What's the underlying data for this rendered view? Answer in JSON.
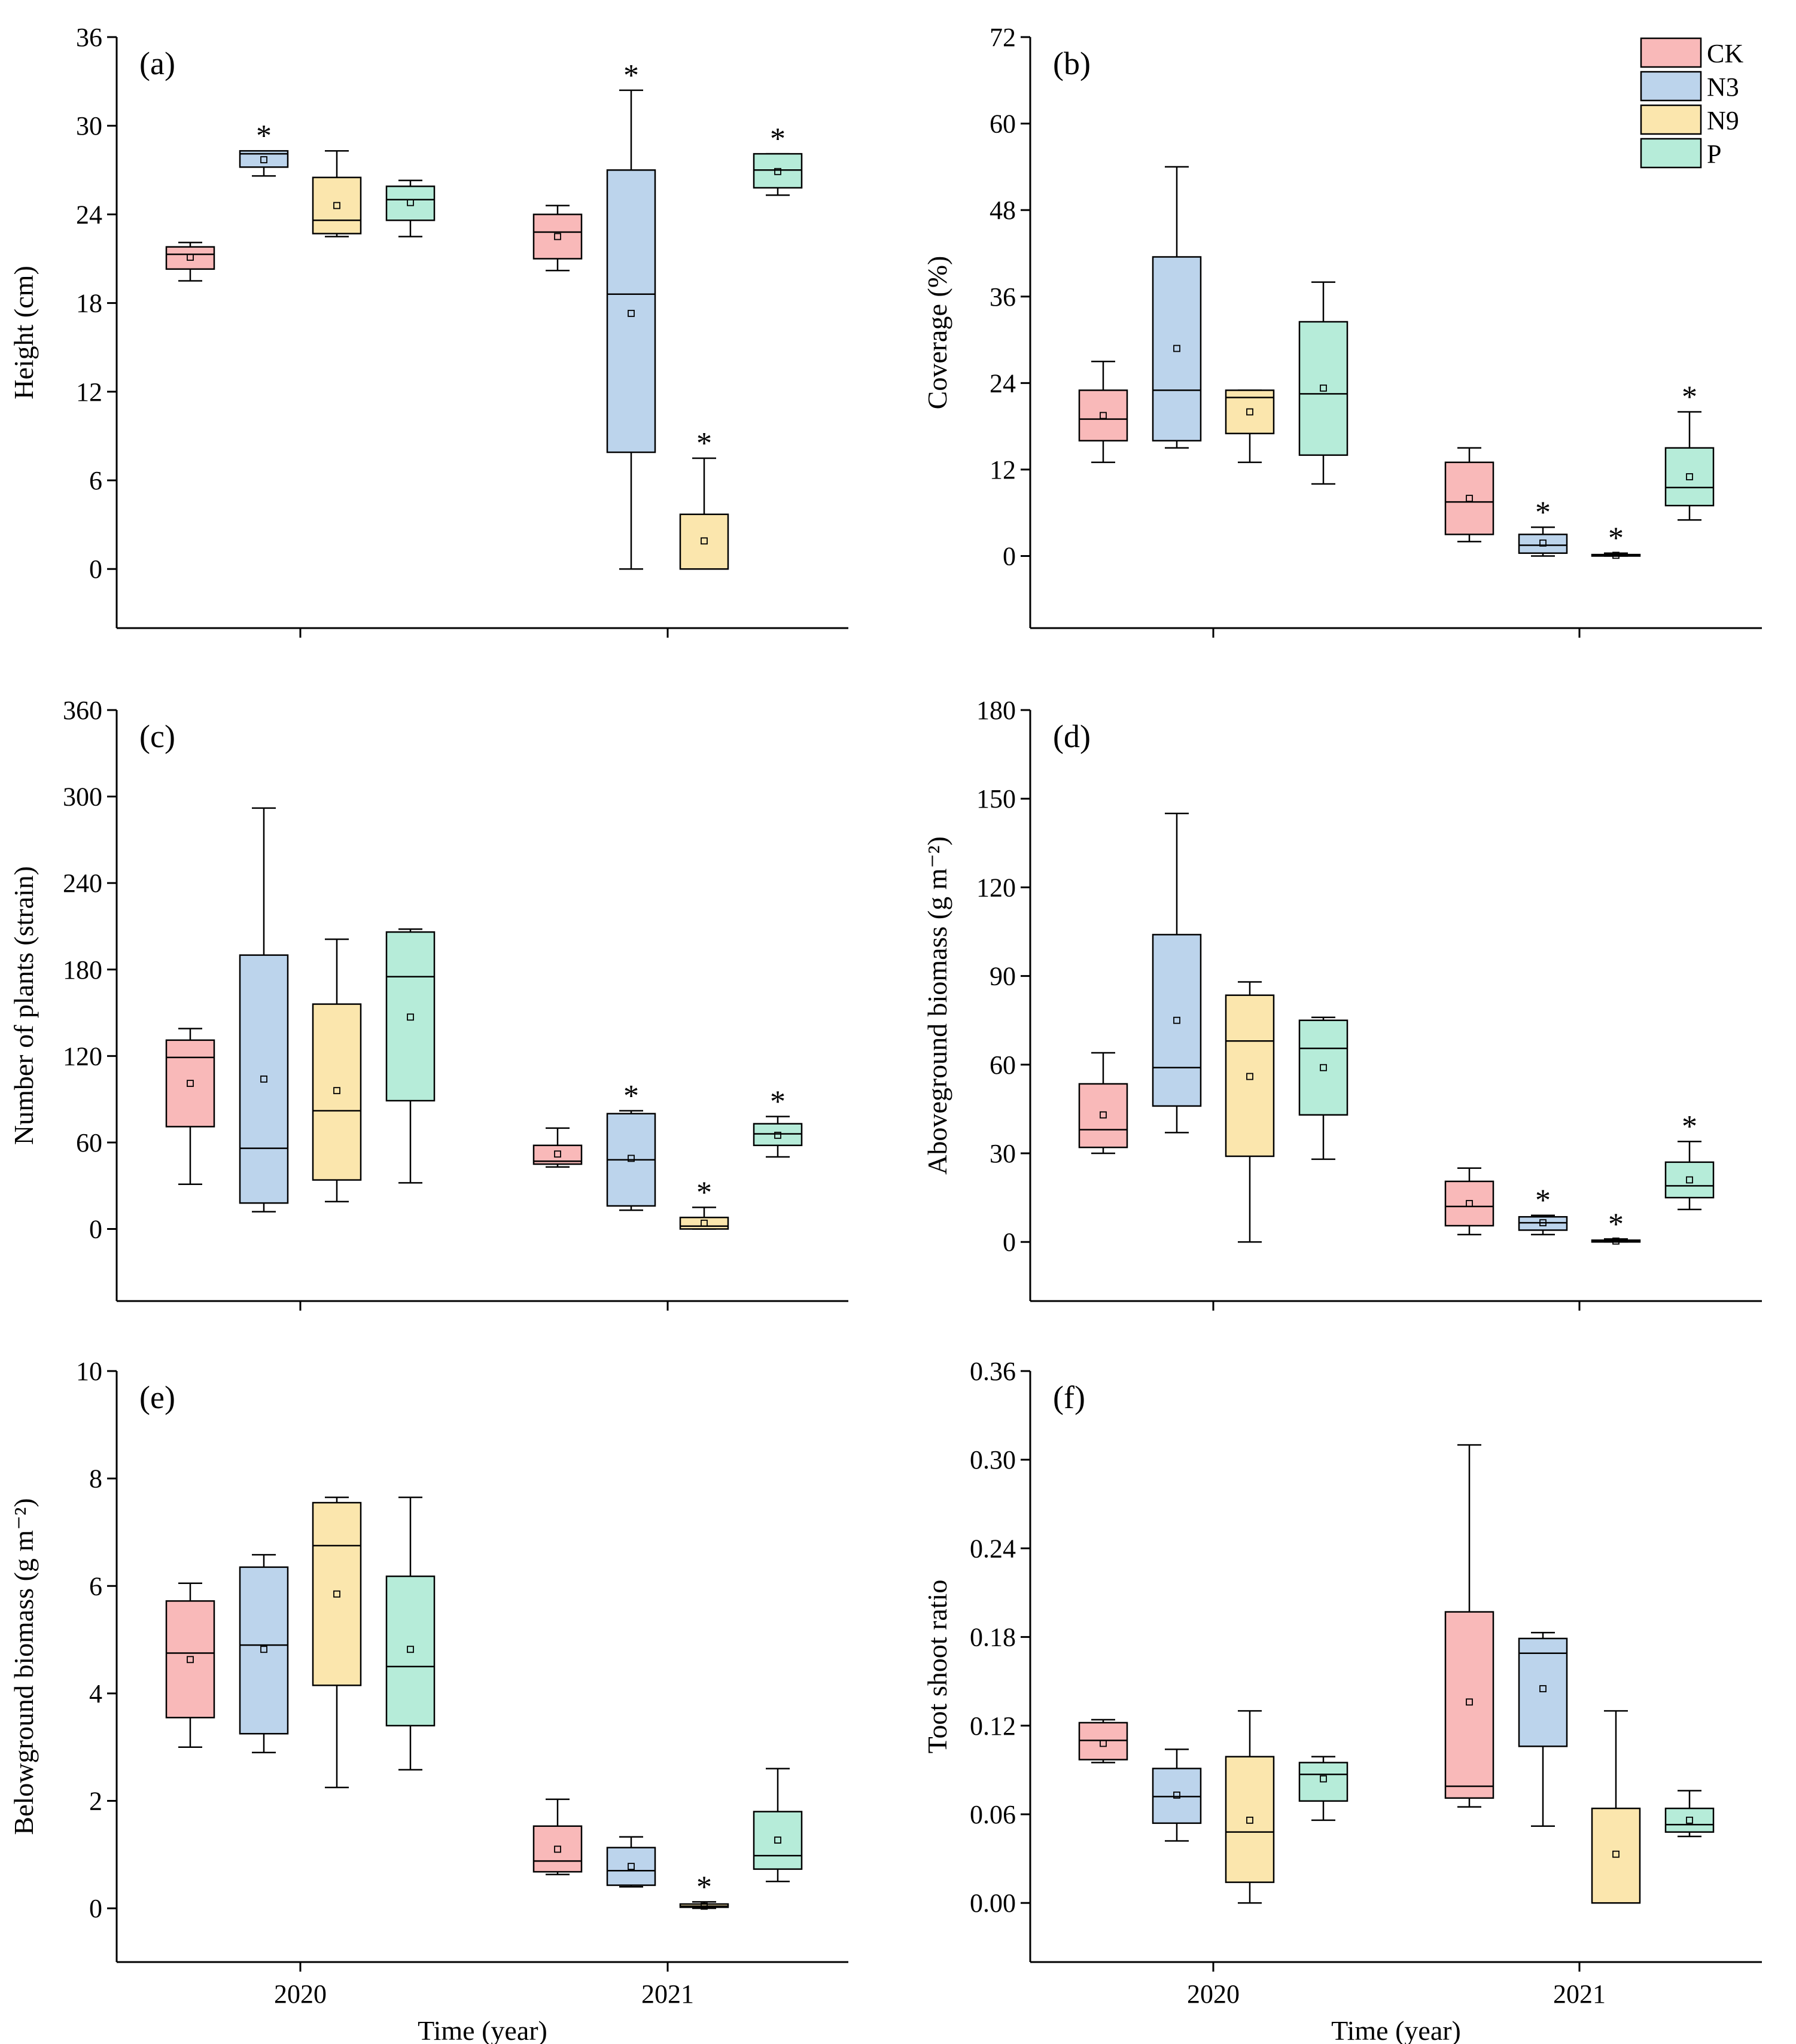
{
  "chart_data": [
    {
      "type": "box",
      "panel_label": "(a)",
      "xlabel": "",
      "ylabel": "Height (cm)",
      "ylim": [
        -4,
        36
      ],
      "yticks": [
        "0",
        "6",
        "12",
        "18",
        "24",
        "30",
        "36"
      ],
      "categories": [
        "2020",
        "2021"
      ],
      "series": [
        {
          "name": "CK",
          "boxes": [
            {
              "whisker_low": 19.5,
              "q1": 20.3,
              "median": 21.3,
              "q3": 21.8,
              "whisker_high": 22.1,
              "mean": 21.1,
              "significant": false
            },
            {
              "whisker_low": 20.2,
              "q1": 21.0,
              "median": 22.8,
              "q3": 24.0,
              "whisker_high": 24.6,
              "mean": 22.5,
              "significant": false
            }
          ]
        },
        {
          "name": "N3",
          "boxes": [
            {
              "whisker_low": 26.6,
              "q1": 27.2,
              "median": 28.1,
              "q3": 28.3,
              "whisker_high": 28.3,
              "mean": 27.7,
              "significant": true
            },
            {
              "whisker_low": 0,
              "q1": 7.9,
              "median": 18.6,
              "q3": 27.0,
              "whisker_high": 32.4,
              "mean": 17.3,
              "significant": true
            }
          ]
        },
        {
          "name": "N9",
          "boxes": [
            {
              "whisker_low": 22.5,
              "q1": 22.7,
              "median": 23.6,
              "q3": 26.5,
              "whisker_high": 28.3,
              "mean": 24.6,
              "significant": false
            },
            {
              "whisker_low": 0,
              "q1": 0,
              "median": 0,
              "q3": 3.7,
              "whisker_high": 7.5,
              "mean": 1.9,
              "significant": true
            }
          ]
        },
        {
          "name": "P",
          "boxes": [
            {
              "whisker_low": 22.5,
              "q1": 23.6,
              "median": 25.0,
              "q3": 25.9,
              "whisker_high": 26.3,
              "mean": 24.8,
              "significant": false
            },
            {
              "whisker_low": 25.3,
              "q1": 25.8,
              "median": 27.0,
              "q3": 28.1,
              "whisker_high": 28.1,
              "mean": 26.9,
              "significant": true
            }
          ]
        }
      ]
    },
    {
      "type": "box",
      "panel_label": "(b)",
      "xlabel": "",
      "ylabel": "Coverage (%)",
      "ylim": [
        -10,
        72
      ],
      "yticks": [
        "0",
        "12",
        "24",
        "36",
        "48",
        "60",
        "72"
      ],
      "categories": [
        "2020",
        "2021"
      ],
      "series": [
        {
          "name": "CK",
          "boxes": [
            {
              "whisker_low": 13,
              "q1": 16,
              "median": 19,
              "q3": 23,
              "whisker_high": 27,
              "mean": 19.5,
              "significant": false
            },
            {
              "whisker_low": 2,
              "q1": 3,
              "median": 7.5,
              "q3": 13,
              "whisker_high": 15,
              "mean": 8,
              "significant": false
            }
          ]
        },
        {
          "name": "N3",
          "boxes": [
            {
              "whisker_low": 15,
              "q1": 16,
              "median": 23,
              "q3": 41.5,
              "whisker_high": 54,
              "mean": 28.8,
              "significant": false
            },
            {
              "whisker_low": 0,
              "q1": 0.4,
              "median": 1.5,
              "q3": 3,
              "whisker_high": 4,
              "mean": 1.8,
              "significant": true
            }
          ]
        },
        {
          "name": "N9",
          "boxes": [
            {
              "whisker_low": 13,
              "q1": 17,
              "median": 22,
              "q3": 23,
              "whisker_high": 23,
              "mean": 20,
              "significant": false
            },
            {
              "whisker_low": 0,
              "q1": 0,
              "median": 0.1,
              "q3": 0.2,
              "whisker_high": 0.4,
              "mean": 0.1,
              "significant": true
            }
          ]
        },
        {
          "name": "P",
          "boxes": [
            {
              "whisker_low": 10,
              "q1": 14,
              "median": 22.5,
              "q3": 32.5,
              "whisker_high": 38,
              "mean": 23.3,
              "significant": false
            },
            {
              "whisker_low": 5,
              "q1": 7,
              "median": 9.5,
              "q3": 15,
              "whisker_high": 20,
              "mean": 11,
              "significant": true
            }
          ]
        }
      ],
      "legend": [
        "CK",
        "N3",
        "N9",
        "P"
      ]
    },
    {
      "type": "box",
      "panel_label": "(c)",
      "xlabel": "",
      "ylabel": "Number of plants (strain)",
      "ylim": [
        -50,
        360
      ],
      "yticks": [
        "0",
        "60",
        "120",
        "180",
        "240",
        "300",
        "360"
      ],
      "categories": [
        "2020",
        "2021"
      ],
      "series": [
        {
          "name": "CK",
          "boxes": [
            {
              "whisker_low": 31,
              "q1": 71,
              "median": 119,
              "q3": 131,
              "whisker_high": 139,
              "mean": 101,
              "significant": false
            },
            {
              "whisker_low": 43,
              "q1": 45,
              "median": 47,
              "q3": 58,
              "whisker_high": 70,
              "mean": 52,
              "significant": false
            }
          ]
        },
        {
          "name": "N3",
          "boxes": [
            {
              "whisker_low": 12,
              "q1": 18,
              "median": 56,
              "q3": 190,
              "whisker_high": 292,
              "mean": 104,
              "significant": false
            },
            {
              "whisker_low": 13,
              "q1": 16,
              "median": 48,
              "q3": 80,
              "whisker_high": 82,
              "mean": 49,
              "significant": true
            }
          ]
        },
        {
          "name": "N9",
          "boxes": [
            {
              "whisker_low": 19,
              "q1": 34,
              "median": 82,
              "q3": 156,
              "whisker_high": 201,
              "mean": 96,
              "significant": false
            },
            {
              "whisker_low": 0,
              "q1": 0,
              "median": 2,
              "q3": 8,
              "whisker_high": 15,
              "mean": 4,
              "significant": true
            }
          ]
        },
        {
          "name": "P",
          "boxes": [
            {
              "whisker_low": 32,
              "q1": 89,
              "median": 175,
              "q3": 206,
              "whisker_high": 208,
              "mean": 147,
              "significant": false
            },
            {
              "whisker_low": 50,
              "q1": 58,
              "median": 66,
              "q3": 73,
              "whisker_high": 78,
              "mean": 65,
              "significant": true
            }
          ]
        }
      ]
    },
    {
      "type": "box",
      "panel_label": "(d)",
      "xlabel": "",
      "ylabel": "Aboveground biomass (g m⁻²)",
      "ylim": [
        -20,
        180
      ],
      "yticks": [
        "0",
        "30",
        "60",
        "90",
        "120",
        "150",
        "180"
      ],
      "categories": [
        "2020",
        "2021"
      ],
      "series": [
        {
          "name": "CK",
          "boxes": [
            {
              "whisker_low": 30,
              "q1": 32,
              "median": 38,
              "q3": 53.5,
              "whisker_high": 64,
              "mean": 43,
              "significant": false
            },
            {
              "whisker_low": 2.5,
              "q1": 5.5,
              "median": 12,
              "q3": 20.5,
              "whisker_high": 25,
              "mean": 13,
              "significant": false
            }
          ]
        },
        {
          "name": "N3",
          "boxes": [
            {
              "whisker_low": 37,
              "q1": 46,
              "median": 59,
              "q3": 104,
              "whisker_high": 145,
              "mean": 75,
              "significant": false
            },
            {
              "whisker_low": 2.5,
              "q1": 4,
              "median": 6.5,
              "q3": 8.5,
              "whisker_high": 9,
              "mean": 6.5,
              "significant": true
            }
          ]
        },
        {
          "name": "N9",
          "boxes": [
            {
              "whisker_low": 0,
              "q1": 29,
              "median": 68,
              "q3": 83.5,
              "whisker_high": 88,
              "mean": 56,
              "significant": false
            },
            {
              "whisker_low": 0,
              "q1": 0,
              "median": 0.3,
              "q3": 0.6,
              "whisker_high": 1,
              "mean": 0.3,
              "significant": true
            }
          ]
        },
        {
          "name": "P",
          "boxes": [
            {
              "whisker_low": 28,
              "q1": 43,
              "median": 65.5,
              "q3": 75,
              "whisker_high": 76,
              "mean": 59,
              "significant": false
            },
            {
              "whisker_low": 11,
              "q1": 15,
              "median": 19,
              "q3": 27,
              "whisker_high": 34,
              "mean": 21,
              "significant": true
            }
          ]
        }
      ]
    },
    {
      "type": "box",
      "panel_label": "(e)",
      "xlabel": "Time (year)",
      "ylabel": "Belowground biomass (g m⁻²)",
      "ylim": [
        -1,
        10
      ],
      "yticks": [
        "0",
        "2",
        "4",
        "6",
        "8",
        "10"
      ],
      "categories": [
        "2020",
        "2021"
      ],
      "series": [
        {
          "name": "CK",
          "boxes": [
            {
              "whisker_low": 3.0,
              "q1": 3.55,
              "median": 4.75,
              "q3": 5.72,
              "whisker_high": 6.05,
              "mean": 4.63,
              "significant": false
            },
            {
              "whisker_low": 0.63,
              "q1": 0.68,
              "median": 0.88,
              "q3": 1.53,
              "whisker_high": 2.03,
              "mean": 1.1,
              "significant": false
            }
          ]
        },
        {
          "name": "N3",
          "boxes": [
            {
              "whisker_low": 2.9,
              "q1": 3.25,
              "median": 4.9,
              "q3": 6.35,
              "whisker_high": 6.58,
              "mean": 4.82,
              "significant": false
            },
            {
              "whisker_low": 0.4,
              "q1": 0.43,
              "median": 0.7,
              "q3": 1.13,
              "whisker_high": 1.33,
              "mean": 0.78,
              "significant": false
            }
          ]
        },
        {
          "name": "N9",
          "boxes": [
            {
              "whisker_low": 2.25,
              "q1": 4.15,
              "median": 6.75,
              "q3": 7.55,
              "whisker_high": 7.65,
              "mean": 5.85,
              "significant": false
            },
            {
              "whisker_low": 0,
              "q1": 0.02,
              "median": 0.04,
              "q3": 0.08,
              "whisker_high": 0.12,
              "mean": 0.04,
              "significant": true
            }
          ]
        },
        {
          "name": "P",
          "boxes": [
            {
              "whisker_low": 2.58,
              "q1": 3.4,
              "median": 4.5,
              "q3": 6.18,
              "whisker_high": 7.65,
              "mean": 4.82,
              "significant": false
            },
            {
              "whisker_low": 0.5,
              "q1": 0.73,
              "median": 0.98,
              "q3": 1.8,
              "whisker_high": 2.6,
              "mean": 1.27,
              "significant": false
            }
          ]
        }
      ]
    },
    {
      "type": "box",
      "panel_label": "(f)",
      "xlabel": "Time (year)",
      "ylabel": "Toot shoot ratio",
      "ylim": [
        -0.04,
        0.36
      ],
      "yticks": [
        "0.00",
        "0.06",
        "0.12",
        "0.18",
        "0.24",
        "0.30",
        "0.36"
      ],
      "categories": [
        "2020",
        "2021"
      ],
      "series": [
        {
          "name": "CK",
          "boxes": [
            {
              "whisker_low": 0.095,
              "q1": 0.097,
              "median": 0.11,
              "q3": 0.122,
              "whisker_high": 0.124,
              "mean": 0.108,
              "significant": false
            },
            {
              "whisker_low": 0.065,
              "q1": 0.071,
              "median": 0.079,
              "q3": 0.197,
              "whisker_high": 0.31,
              "mean": 0.136,
              "significant": false
            }
          ]
        },
        {
          "name": "N3",
          "boxes": [
            {
              "whisker_low": 0.042,
              "q1": 0.054,
              "median": 0.072,
              "q3": 0.091,
              "whisker_high": 0.104,
              "mean": 0.073,
              "significant": false
            },
            {
              "whisker_low": 0.052,
              "q1": 0.106,
              "median": 0.169,
              "q3": 0.179,
              "whisker_high": 0.183,
              "mean": 0.145,
              "significant": false
            }
          ]
        },
        {
          "name": "N9",
          "boxes": [
            {
              "whisker_low": 0,
              "q1": 0.014,
              "median": 0.048,
              "q3": 0.099,
              "whisker_high": 0.13,
              "mean": 0.056,
              "significant": false
            },
            {
              "whisker_low": 0,
              "q1": 0,
              "median": 0,
              "q3": 0.064,
              "whisker_high": 0.13,
              "mean": 0.033,
              "significant": false
            }
          ]
        },
        {
          "name": "P",
          "boxes": [
            {
              "whisker_low": 0.056,
              "q1": 0.069,
              "median": 0.087,
              "q3": 0.095,
              "whisker_high": 0.099,
              "mean": 0.084,
              "significant": false
            },
            {
              "whisker_low": 0.045,
              "q1": 0.048,
              "median": 0.053,
              "q3": 0.064,
              "whisker_high": 0.076,
              "mean": 0.056,
              "significant": false
            }
          ]
        }
      ]
    }
  ],
  "legend": {
    "items": [
      {
        "name": "CK",
        "color": "#f9b9b9"
      },
      {
        "name": "N3",
        "color": "#bcd4ec"
      },
      {
        "name": "N9",
        "color": "#fbe6ad"
      },
      {
        "name": "P",
        "color": "#b6ecd9"
      }
    ]
  },
  "significance_marker": "*",
  "colors": {
    "axis": "#000000",
    "background": "#ffffff",
    "mean_marker": "#000000"
  }
}
